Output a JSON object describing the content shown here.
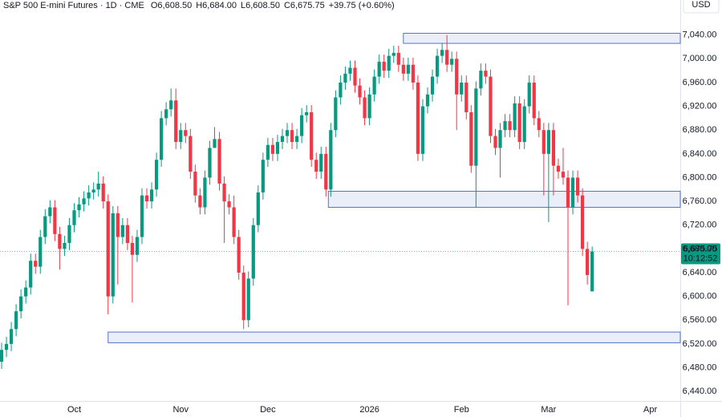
{
  "chart_data": {
    "type": "candlestick",
    "title": "S&P 500 E-mini Futures · 1D · CME",
    "ohlc_labels": [
      "O6,608.50",
      "H6,684.00",
      "L6,608.50",
      "C6,675.75"
    ],
    "change": "+39.75 (+0.60%)",
    "currency": "USD",
    "price_tag": "6,675.75",
    "countdown": "10:12:52",
    "up_color": "#089981",
    "down_color": "#f23645",
    "zone_color": "#5573c9",
    "candles": {
      "open": [
        6490,
        6510,
        6520,
        6545,
        6575,
        6600,
        6615,
        6660,
        6650,
        6700,
        6735,
        6750,
        6705,
        6680,
        6690,
        6720,
        6745,
        6755,
        6765,
        6775,
        6780,
        6790,
        6760,
        6600,
        6740,
        6700,
        6720,
        6690,
        6670,
        6700,
        6770,
        6760,
        6780,
        6830,
        6900,
        6915,
        6930,
        6860,
        6880,
        6870,
        6810,
        6770,
        6750,
        6800,
        6850,
        6865,
        6790,
        6760,
        6750,
        6700,
        6640,
        6560,
        6630,
        6720,
        6775,
        6830,
        6855,
        6840,
        6860,
        6870,
        6880,
        6860,
        6870,
        6905,
        6910,
        6830,
        6810,
        6840,
        6780,
        6880,
        6935,
        6960,
        6975,
        6985,
        6955,
        6935,
        6900,
        6940,
        6970,
        6995,
        6980,
        7005,
        7010,
        6990,
        6975,
        6990,
        6960,
        6840,
        6920,
        6940,
        6970,
        7005,
        7015,
        6990,
        7000,
        6940,
        6960,
        6910,
        6820,
        6950,
        6980,
        6970,
        6870,
        6850,
        6880,
        6895,
        6880,
        6925,
        6860,
        6920,
        6960,
        6900,
        6880,
        6840,
        6880,
        6820,
        6810,
        6800,
        6750,
        6800,
        6770,
        6680,
        6608.5
      ],
      "high": [
        6522,
        6532,
        6557,
        6587,
        6612,
        6627,
        6672,
        6672,
        6712,
        6747,
        6762,
        6762,
        6717,
        6702,
        6732,
        6757,
        6767,
        6777,
        6787,
        6792,
        6810,
        6802,
        6772,
        6752,
        6752,
        6732,
        6732,
        6702,
        6712,
        6782,
        6782,
        6792,
        6842,
        6912,
        6927,
        6950,
        6950,
        6892,
        6892,
        6882,
        6822,
        6782,
        6812,
        6862,
        6885,
        6877,
        6802,
        6772,
        6770,
        6712,
        6652,
        6642,
        6732,
        6787,
        6842,
        6867,
        6867,
        6872,
        6882,
        6892,
        6892,
        6882,
        6917,
        6922,
        6922,
        6842,
        6852,
        6852,
        6892,
        6947,
        6972,
        6987,
        6997,
        6997,
        6967,
        6947,
        6952,
        6982,
        7007,
        7007,
        7017,
        7022,
        7022,
        7002,
        7002,
        7002,
        6972,
        6932,
        6952,
        6982,
        7017,
        7027,
        7040,
        7012,
        7012,
        6972,
        6972,
        6922,
        6962,
        6992,
        6992,
        6982,
        6882,
        6892,
        6907,
        6907,
        6937,
        6937,
        6932,
        6972,
        6972,
        6912,
        6892,
        6892,
        6892,
        6832,
        6850,
        6812,
        6812,
        6812,
        6782,
        6692,
        6684
      ],
      "low": [
        6478,
        6498,
        6508,
        6533,
        6563,
        6588,
        6603,
        6638,
        6638,
        6688,
        6723,
        6693,
        6645,
        6668,
        6678,
        6708,
        6733,
        6743,
        6753,
        6763,
        6768,
        6748,
        6570,
        6588,
        6620,
        6688,
        6678,
        6590,
        6658,
        6688,
        6748,
        6748,
        6768,
        6818,
        6888,
        6903,
        6848,
        6848,
        6858,
        6798,
        6758,
        6738,
        6738,
        6788,
        6853,
        6778,
        6690,
        6738,
        6688,
        6628,
        6545,
        6548,
        6618,
        6708,
        6763,
        6818,
        6828,
        6828,
        6848,
        6858,
        6848,
        6848,
        6858,
        6893,
        6818,
        6798,
        6798,
        6768,
        6768,
        6868,
        6923,
        6948,
        6963,
        6943,
        6923,
        6888,
        6888,
        6928,
        6958,
        6968,
        6968,
        6993,
        6978,
        6963,
        6963,
        6948,
        6828,
        6828,
        6908,
        6928,
        6958,
        6993,
        6978,
        6978,
        6880,
        6928,
        6898,
        6808,
        6750,
        6938,
        6958,
        6858,
        6838,
        6800,
        6868,
        6868,
        6868,
        6848,
        6848,
        6908,
        6888,
        6868,
        6770,
        6725,
        6770,
        6798,
        6788,
        6585,
        6738,
        6758,
        6668,
        6620,
        6608.5
      ],
      "close": [
        6510,
        6520,
        6545,
        6575,
        6600,
        6615,
        6660,
        6650,
        6700,
        6735,
        6750,
        6705,
        6680,
        6690,
        6720,
        6745,
        6755,
        6765,
        6775,
        6780,
        6790,
        6760,
        6600,
        6740,
        6700,
        6720,
        6690,
        6670,
        6700,
        6770,
        6760,
        6780,
        6830,
        6900,
        6915,
        6930,
        6860,
        6880,
        6870,
        6810,
        6770,
        6750,
        6800,
        6850,
        6865,
        6790,
        6760,
        6750,
        6700,
        6640,
        6560,
        6630,
        6720,
        6775,
        6830,
        6855,
        6840,
        6860,
        6870,
        6880,
        6860,
        6870,
        6905,
        6910,
        6830,
        6810,
        6840,
        6780,
        6880,
        6935,
        6960,
        6975,
        6985,
        6955,
        6935,
        6900,
        6940,
        6970,
        6995,
        6980,
        7005,
        7010,
        6990,
        6975,
        6990,
        6960,
        6840,
        6920,
        6940,
        6970,
        7005,
        7015,
        6990,
        7000,
        6940,
        6960,
        6910,
        6820,
        6950,
        6980,
        6970,
        6870,
        6850,
        6880,
        6895,
        6880,
        6925,
        6860,
        6920,
        6960,
        6900,
        6880,
        6840,
        6880,
        6820,
        6810,
        6800,
        6750,
        6800,
        6770,
        6680,
        6636,
        6675.75
      ]
    },
    "zones": [
      {
        "start": 83,
        "low": 7026,
        "high": 7043
      },
      {
        "start": 67.5,
        "low": 6750,
        "high": 6777
      },
      {
        "start": 22,
        "low": 6522,
        "high": 6540
      }
    ],
    "xlim": [
      -0.33,
      140.2
    ],
    "xticks": [
      {
        "value": 15,
        "label": "Oct"
      },
      {
        "value": 37,
        "label": "Nov"
      },
      {
        "value": 55,
        "label": "Dec"
      },
      {
        "value": 76,
        "label": "2026"
      },
      {
        "value": 95,
        "label": "Feb"
      },
      {
        "value": 113,
        "label": "Mar"
      },
      {
        "value": 134,
        "label": "Apr"
      }
    ],
    "ylim": [
      6424,
      7099
    ],
    "yticks": [
      {
        "value": 6440,
        "label": "6,440.00"
      },
      {
        "value": 6480,
        "label": "6,480.00"
      },
      {
        "value": 6520,
        "label": "6,520.00"
      },
      {
        "value": 6560,
        "label": "6,560.00"
      },
      {
        "value": 6600,
        "label": "6,600.00"
      },
      {
        "value": 6640,
        "label": "6,640.00"
      },
      {
        "value": 6680,
        "label": "6,680.00"
      },
      {
        "value": 6720,
        "label": "6,720.00"
      },
      {
        "value": 6760,
        "label": "6,760.00"
      },
      {
        "value": 6800,
        "label": "6,800.00"
      },
      {
        "value": 6840,
        "label": "6,840.00"
      },
      {
        "value": 6880,
        "label": "6,880.00"
      },
      {
        "value": 6920,
        "label": "6,920.00"
      },
      {
        "value": 6960,
        "label": "6,960.00"
      },
      {
        "value": 7000,
        "label": "7,000.00"
      },
      {
        "value": 7040,
        "label": "7,040.00"
      }
    ],
    "grid": false
  }
}
